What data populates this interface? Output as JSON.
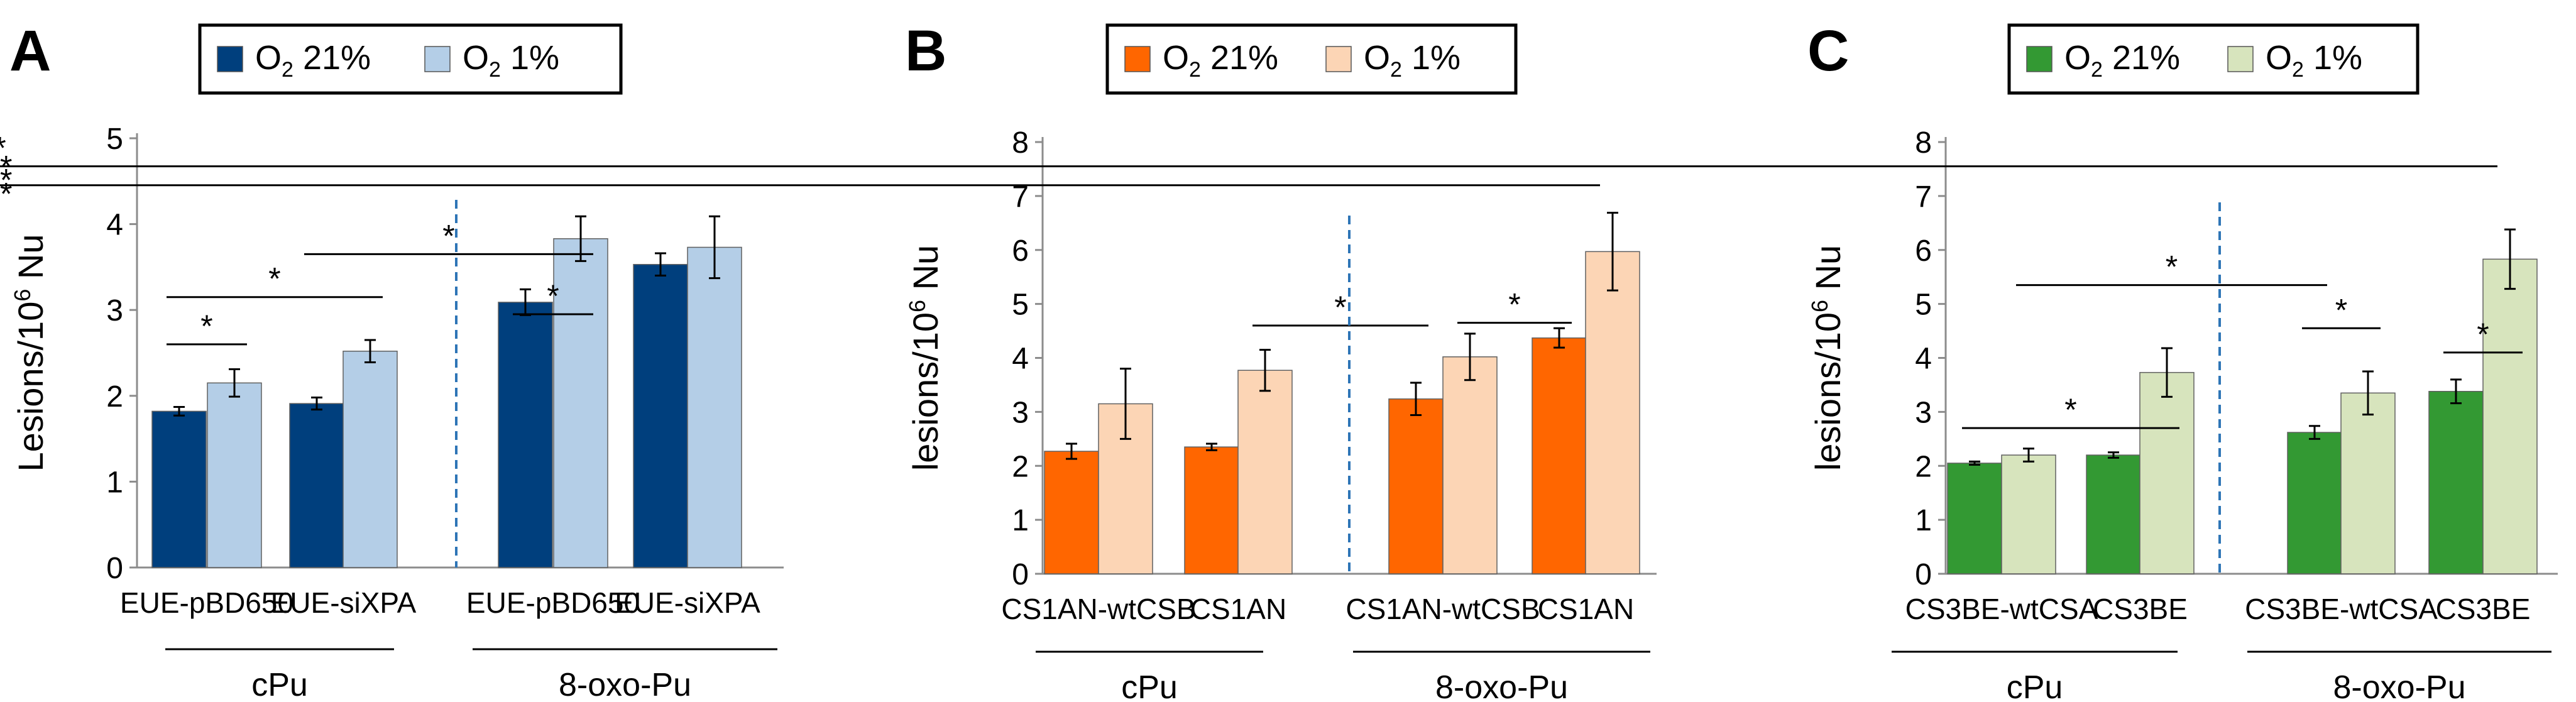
{
  "figure_title": "",
  "chart_data": [
    {
      "type": "bar",
      "panel_label": "A",
      "ylabel": "Lesions/10",
      "ylabel_sup": "6",
      "ylabel_tail": " Nu",
      "ylim": [
        0,
        5
      ],
      "yticks": [
        "0",
        "1",
        "2",
        "3",
        "4",
        "5"
      ],
      "grid": false,
      "legend_position": "top-center",
      "colors": {
        "dark": "#003F7D",
        "light": "#B4CEE7",
        "divider": "#2E75B6"
      },
      "categories": [
        "EUE-pBD650",
        "EUE-siXPA",
        "EUE-pBD650",
        "EUE-siXPA"
      ],
      "groups": [
        "cPu",
        "8-oxo-Pu"
      ],
      "series": [
        {
          "name": "O2 21%",
          "legend_main": "O",
          "legend_sub": "2",
          "legend_tail": " 21%",
          "values": [
            1.82,
            1.91,
            3.09,
            3.53
          ],
          "errors": [
            0.05,
            0.07,
            0.15,
            0.13
          ]
        },
        {
          "name": "O2 1%",
          "legend_main": "O",
          "legend_sub": "2",
          "legend_tail": " 1%",
          "values": [
            2.15,
            2.52,
            3.83,
            3.73
          ],
          "errors": [
            0.16,
            0.13,
            0.26,
            0.36
          ]
        }
      ],
      "significance": [
        {
          "label": "*",
          "x1": 0,
          "x2": 1,
          "y": 2.6
        },
        {
          "label": "*",
          "x1": 0,
          "x2": 3,
          "y": 3.15
        },
        {
          "label": "*",
          "x1": 2,
          "x2": 5,
          "y": 3.65
        },
        {
          "label": "*",
          "x1": 4,
          "x2": 5,
          "y": 2.95
        },
        {
          "label": "**",
          "x1": 8,
          "x2": 11,
          "y": 4.3
        }
      ]
    },
    {
      "type": "bar",
      "panel_label": "B",
      "ylabel": "lesions/10",
      "ylabel_sup": "6",
      "ylabel_tail": " Nu",
      "ylim": [
        0,
        8
      ],
      "yticks": [
        "0",
        "1",
        "2",
        "3",
        "4",
        "5",
        "6",
        "7",
        "8"
      ],
      "grid": false,
      "legend_position": "top-center",
      "colors": {
        "dark": "#FF6600",
        "light": "#FCD5B5",
        "divider": "#2E75B6"
      },
      "categories": [
        "CS1AN-wtCSB",
        "CS1AN",
        "CS1AN-wtCSB",
        "CS1AN"
      ],
      "groups": [
        "cPu",
        "8-oxo-Pu"
      ],
      "series": [
        {
          "name": "O2 21%",
          "legend_main": "O",
          "legend_sub": "2",
          "legend_tail": " 21%",
          "values": [
            2.27,
            2.35,
            3.24,
            4.37
          ],
          "errors": [
            0.14,
            0.06,
            0.3,
            0.18
          ]
        },
        {
          "name": "O2 1%",
          "legend_main": "O",
          "legend_sub": "2",
          "legend_tail": " 1%",
          "values": [
            3.15,
            3.77,
            4.02,
            5.97
          ],
          "errors": [
            0.65,
            0.38,
            0.43,
            0.72
          ]
        }
      ],
      "significance": [
        {
          "label": "*",
          "x1": 3,
          "x2": 4,
          "y": 4.6
        },
        {
          "label": "*",
          "x1": 5,
          "x2": 6,
          "y": 4.65
        },
        {
          "label": "**",
          "x1": 7,
          "x2": 10,
          "y": 7.2
        }
      ]
    },
    {
      "type": "bar",
      "panel_label": "C",
      "ylabel": "lesions/10",
      "ylabel_sup": "6",
      "ylabel_tail": " Nu",
      "ylim": [
        0,
        8
      ],
      "yticks": [
        "0",
        "1",
        "2",
        "3",
        "4",
        "5",
        "6",
        "7",
        "8"
      ],
      "grid": false,
      "legend_position": "top-center",
      "colors": {
        "dark": "#339933",
        "light": "#D7E4BD",
        "divider": "#2E75B6"
      },
      "categories": [
        "CS3BE-wtCSA",
        "CS3BE",
        "CS3BE-wtCSA",
        "CS3BE"
      ],
      "groups": [
        "cPu",
        "8-oxo-Pu"
      ],
      "series": [
        {
          "name": "O2 21%",
          "legend_main": "O",
          "legend_sub": "2",
          "legend_tail": " 21%",
          "values": [
            2.05,
            2.2,
            2.62,
            3.38
          ],
          "errors": [
            0.03,
            0.05,
            0.12,
            0.22
          ]
        },
        {
          "name": "O2 1%",
          "legend_main": "O",
          "legend_sub": "2",
          "legend_tail": " 1%",
          "values": [
            2.2,
            3.73,
            3.35,
            5.83
          ],
          "errors": [
            0.12,
            0.45,
            0.4,
            0.55
          ]
        }
      ],
      "significance": [
        {
          "label": "*",
          "x1": 0,
          "x2": 3,
          "y": 2.7
        },
        {
          "label": "*",
          "x1": 1,
          "x2": 4,
          "y": 5.35
        },
        {
          "label": "*",
          "x1": 4,
          "x2": 5,
          "y": 4.55
        },
        {
          "label": "*",
          "x1": 6,
          "x2": 7,
          "y": 4.1
        },
        {
          "label": "**",
          "x1": 10,
          "x2": 11,
          "y": 6.7
        },
        {
          "label": "*",
          "x1": 7,
          "x2": 11,
          "y": 7.55
        }
      ]
    }
  ]
}
